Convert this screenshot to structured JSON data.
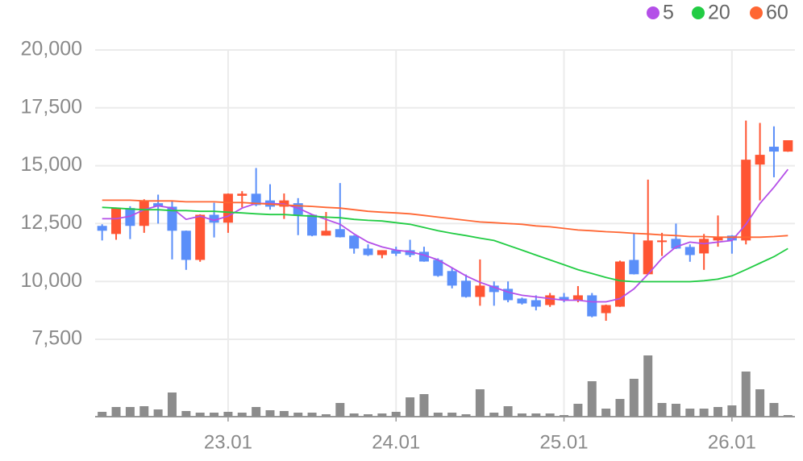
{
  "chart_data": {
    "type": "candlestick",
    "categories": [
      null,
      null,
      null,
      null,
      null,
      null,
      null,
      null,
      null,
      "23.01",
      null,
      null,
      null,
      null,
      null,
      null,
      null,
      null,
      null,
      null,
      null,
      "24.01",
      null,
      null,
      null,
      null,
      null,
      null,
      null,
      null,
      null,
      null,
      null,
      "25.01",
      null,
      null,
      null,
      null,
      null,
      null,
      null,
      null,
      null,
      null,
      null,
      "26.01",
      null,
      null,
      null,
      null
    ],
    "open": [
      12400,
      12050,
      13170,
      12400,
      13380,
      13230,
      12190,
      10930,
      12880,
      12540,
      13700,
      13790,
      13500,
      13230,
      13380,
      12880,
      11980,
      12260,
      11980,
      11420,
      11140,
      11350,
      11350,
      11280,
      10930,
      10450,
      10030,
      9330,
      9820,
      9680,
      9260,
      9190,
      8980,
      9330,
      9190,
      9400,
      8630,
      8910,
      10930,
      10310,
      11700,
      11840,
      11490,
      11210,
      11770,
      11980,
      11770,
      15050,
      15820,
      15610
    ],
    "high": [
      12470,
      13170,
      13250,
      13550,
      13750,
      13500,
      12200,
      12900,
      13400,
      13800,
      13900,
      14900,
      14200,
      13800,
      13600,
      12900,
      13000,
      14250,
      12000,
      11600,
      11350,
      11500,
      11800,
      11500,
      11000,
      10600,
      10300,
      10950,
      10000,
      10000,
      9300,
      9400,
      9500,
      9500,
      9800,
      9500,
      9000,
      10900,
      12100,
      14400,
      12100,
      12500,
      11600,
      12050,
      12850,
      12000,
      16950,
      16850,
      16700,
      16100
    ],
    "low": [
      11770,
      11800,
      11830,
      12100,
      12500,
      10950,
      10500,
      10850,
      11900,
      12100,
      13200,
      13250,
      13100,
      12700,
      12000,
      11950,
      11980,
      11900,
      11200,
      11100,
      11000,
      11100,
      11050,
      10850,
      10200,
      9700,
      9300,
      8950,
      8950,
      9100,
      9000,
      8750,
      8900,
      9100,
      9100,
      8450,
      8300,
      8900,
      10300,
      10300,
      11100,
      11400,
      10850,
      10500,
      11500,
      11200,
      11600,
      13500,
      14500,
      15600
    ],
    "close": [
      12190,
      13170,
      12400,
      13500,
      13230,
      12190,
      10930,
      12880,
      12540,
      13790,
      13790,
      13300,
      13230,
      13500,
      12880,
      11980,
      12190,
      11910,
      11420,
      11140,
      11350,
      11200,
      11140,
      10860,
      10240,
      9820,
      9330,
      9820,
      9540,
      9190,
      9050,
      8910,
      9400,
      9190,
      9400,
      8490,
      8980,
      10860,
      10310,
      11770,
      11770,
      11420,
      11140,
      11840,
      11910,
      11770,
      15260,
      15470,
      15610,
      16100
    ],
    "up_color": "#ff5533",
    "down_color": "#5b8ff9",
    "series": [
      {
        "name": "5",
        "color": "#b44fe8",
        "values": [
          12710,
          12710,
          12820,
          13100,
          13270,
          13170,
          12680,
          12820,
          12640,
          12820,
          13170,
          13370,
          13370,
          13340,
          13170,
          12890,
          12680,
          12470,
          12050,
          11700,
          11490,
          11350,
          11280,
          11140,
          10930,
          10590,
          10240,
          9960,
          9750,
          9540,
          9400,
          9330,
          9260,
          9190,
          9190,
          9120,
          9120,
          9260,
          9680,
          10310,
          11000,
          11490,
          11700,
          11630,
          11700,
          11770,
          12470,
          13370,
          14070,
          14840
        ]
      },
      {
        "name": "20",
        "color": "#22cc44",
        "values": [
          13200,
          13170,
          13130,
          13100,
          13100,
          13060,
          13060,
          13030,
          13030,
          12990,
          12960,
          12920,
          12890,
          12890,
          12850,
          12820,
          12780,
          12750,
          12680,
          12640,
          12610,
          12540,
          12470,
          12330,
          12190,
          12080,
          11980,
          11870,
          11770,
          11560,
          11350,
          11140,
          10930,
          10720,
          10510,
          10340,
          10170,
          10030,
          9990,
          9990,
          9990,
          9990,
          9990,
          10030,
          10100,
          10240,
          10510,
          10790,
          11070,
          11420
        ]
      },
      {
        "name": "60",
        "color": "#ff6633",
        "values": [
          13510,
          13510,
          13510,
          13480,
          13480,
          13480,
          13440,
          13440,
          13440,
          13410,
          13410,
          13370,
          13340,
          13300,
          13270,
          13240,
          13200,
          13170,
          13100,
          13030,
          12990,
          12960,
          12920,
          12850,
          12780,
          12710,
          12640,
          12570,
          12540,
          12500,
          12470,
          12400,
          12360,
          12290,
          12220,
          12190,
          12150,
          12120,
          12080,
          12050,
          12010,
          11980,
          11940,
          11940,
          11910,
          11910,
          11910,
          11910,
          11940,
          11980
        ]
      }
    ],
    "volume": {
      "color": "#8c8c8c",
      "values": [
        6,
        12,
        12,
        13,
        9,
        30,
        7,
        5,
        5,
        6,
        5,
        12,
        8,
        7,
        5,
        5,
        3,
        17,
        4,
        3,
        4,
        6,
        24,
        28,
        5,
        5,
        3,
        34,
        5,
        13,
        4,
        4,
        4,
        2,
        16,
        44,
        10,
        22,
        47,
        76,
        17,
        16,
        10,
        10,
        12,
        14,
        56,
        34,
        17,
        2
      ]
    },
    "vlim": [
      0,
      80
    ],
    "ylim": [
      7500,
      20000
    ],
    "yticks": [
      {
        "value": 7500,
        "label": "7,500"
      },
      {
        "value": 10000,
        "label": "10,000"
      },
      {
        "value": 12500,
        "label": "12,500"
      },
      {
        "value": 15000,
        "label": "15,000"
      },
      {
        "value": 17500,
        "label": "17,500"
      },
      {
        "value": 20000,
        "label": "20,000"
      }
    ],
    "grid": true
  }
}
